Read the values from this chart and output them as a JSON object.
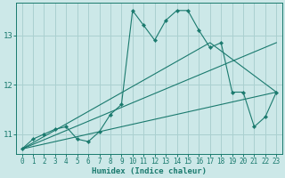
{
  "title": "",
  "xlabel": "Humidex (Indice chaleur)",
  "ylabel": "",
  "bg_color": "#cce8e8",
  "grid_color": "#aad0d0",
  "line_color": "#1a7a6e",
  "xlim": [
    -0.5,
    23.5
  ],
  "ylim": [
    10.6,
    13.65
  ],
  "yticks": [
    11,
    12,
    13
  ],
  "xticks": [
    0,
    1,
    2,
    3,
    4,
    5,
    6,
    7,
    8,
    9,
    10,
    11,
    12,
    13,
    14,
    15,
    16,
    17,
    18,
    19,
    20,
    21,
    22,
    23
  ],
  "series": [
    {
      "x": [
        0,
        1,
        2,
        3,
        4,
        5,
        6,
        7,
        8,
        9,
        10,
        11,
        12,
        13,
        14,
        15,
        16,
        17,
        18,
        19,
        20,
        21,
        22,
        23
      ],
      "y": [
        10.7,
        10.9,
        11.0,
        11.1,
        11.15,
        10.9,
        10.85,
        11.05,
        11.4,
        11.6,
        13.5,
        13.2,
        12.9,
        13.3,
        13.5,
        13.5,
        13.1,
        12.75,
        12.85,
        11.85,
        11.85,
        11.15,
        11.35,
        11.85
      ],
      "marker": "D",
      "markersize": 2.2
    },
    {
      "x": [
        0,
        23
      ],
      "y": [
        10.7,
        12.85
      ]
    },
    {
      "x": [
        0,
        17,
        23
      ],
      "y": [
        10.7,
        12.85,
        11.85
      ]
    },
    {
      "x": [
        0,
        23
      ],
      "y": [
        10.7,
        11.85
      ]
    }
  ]
}
